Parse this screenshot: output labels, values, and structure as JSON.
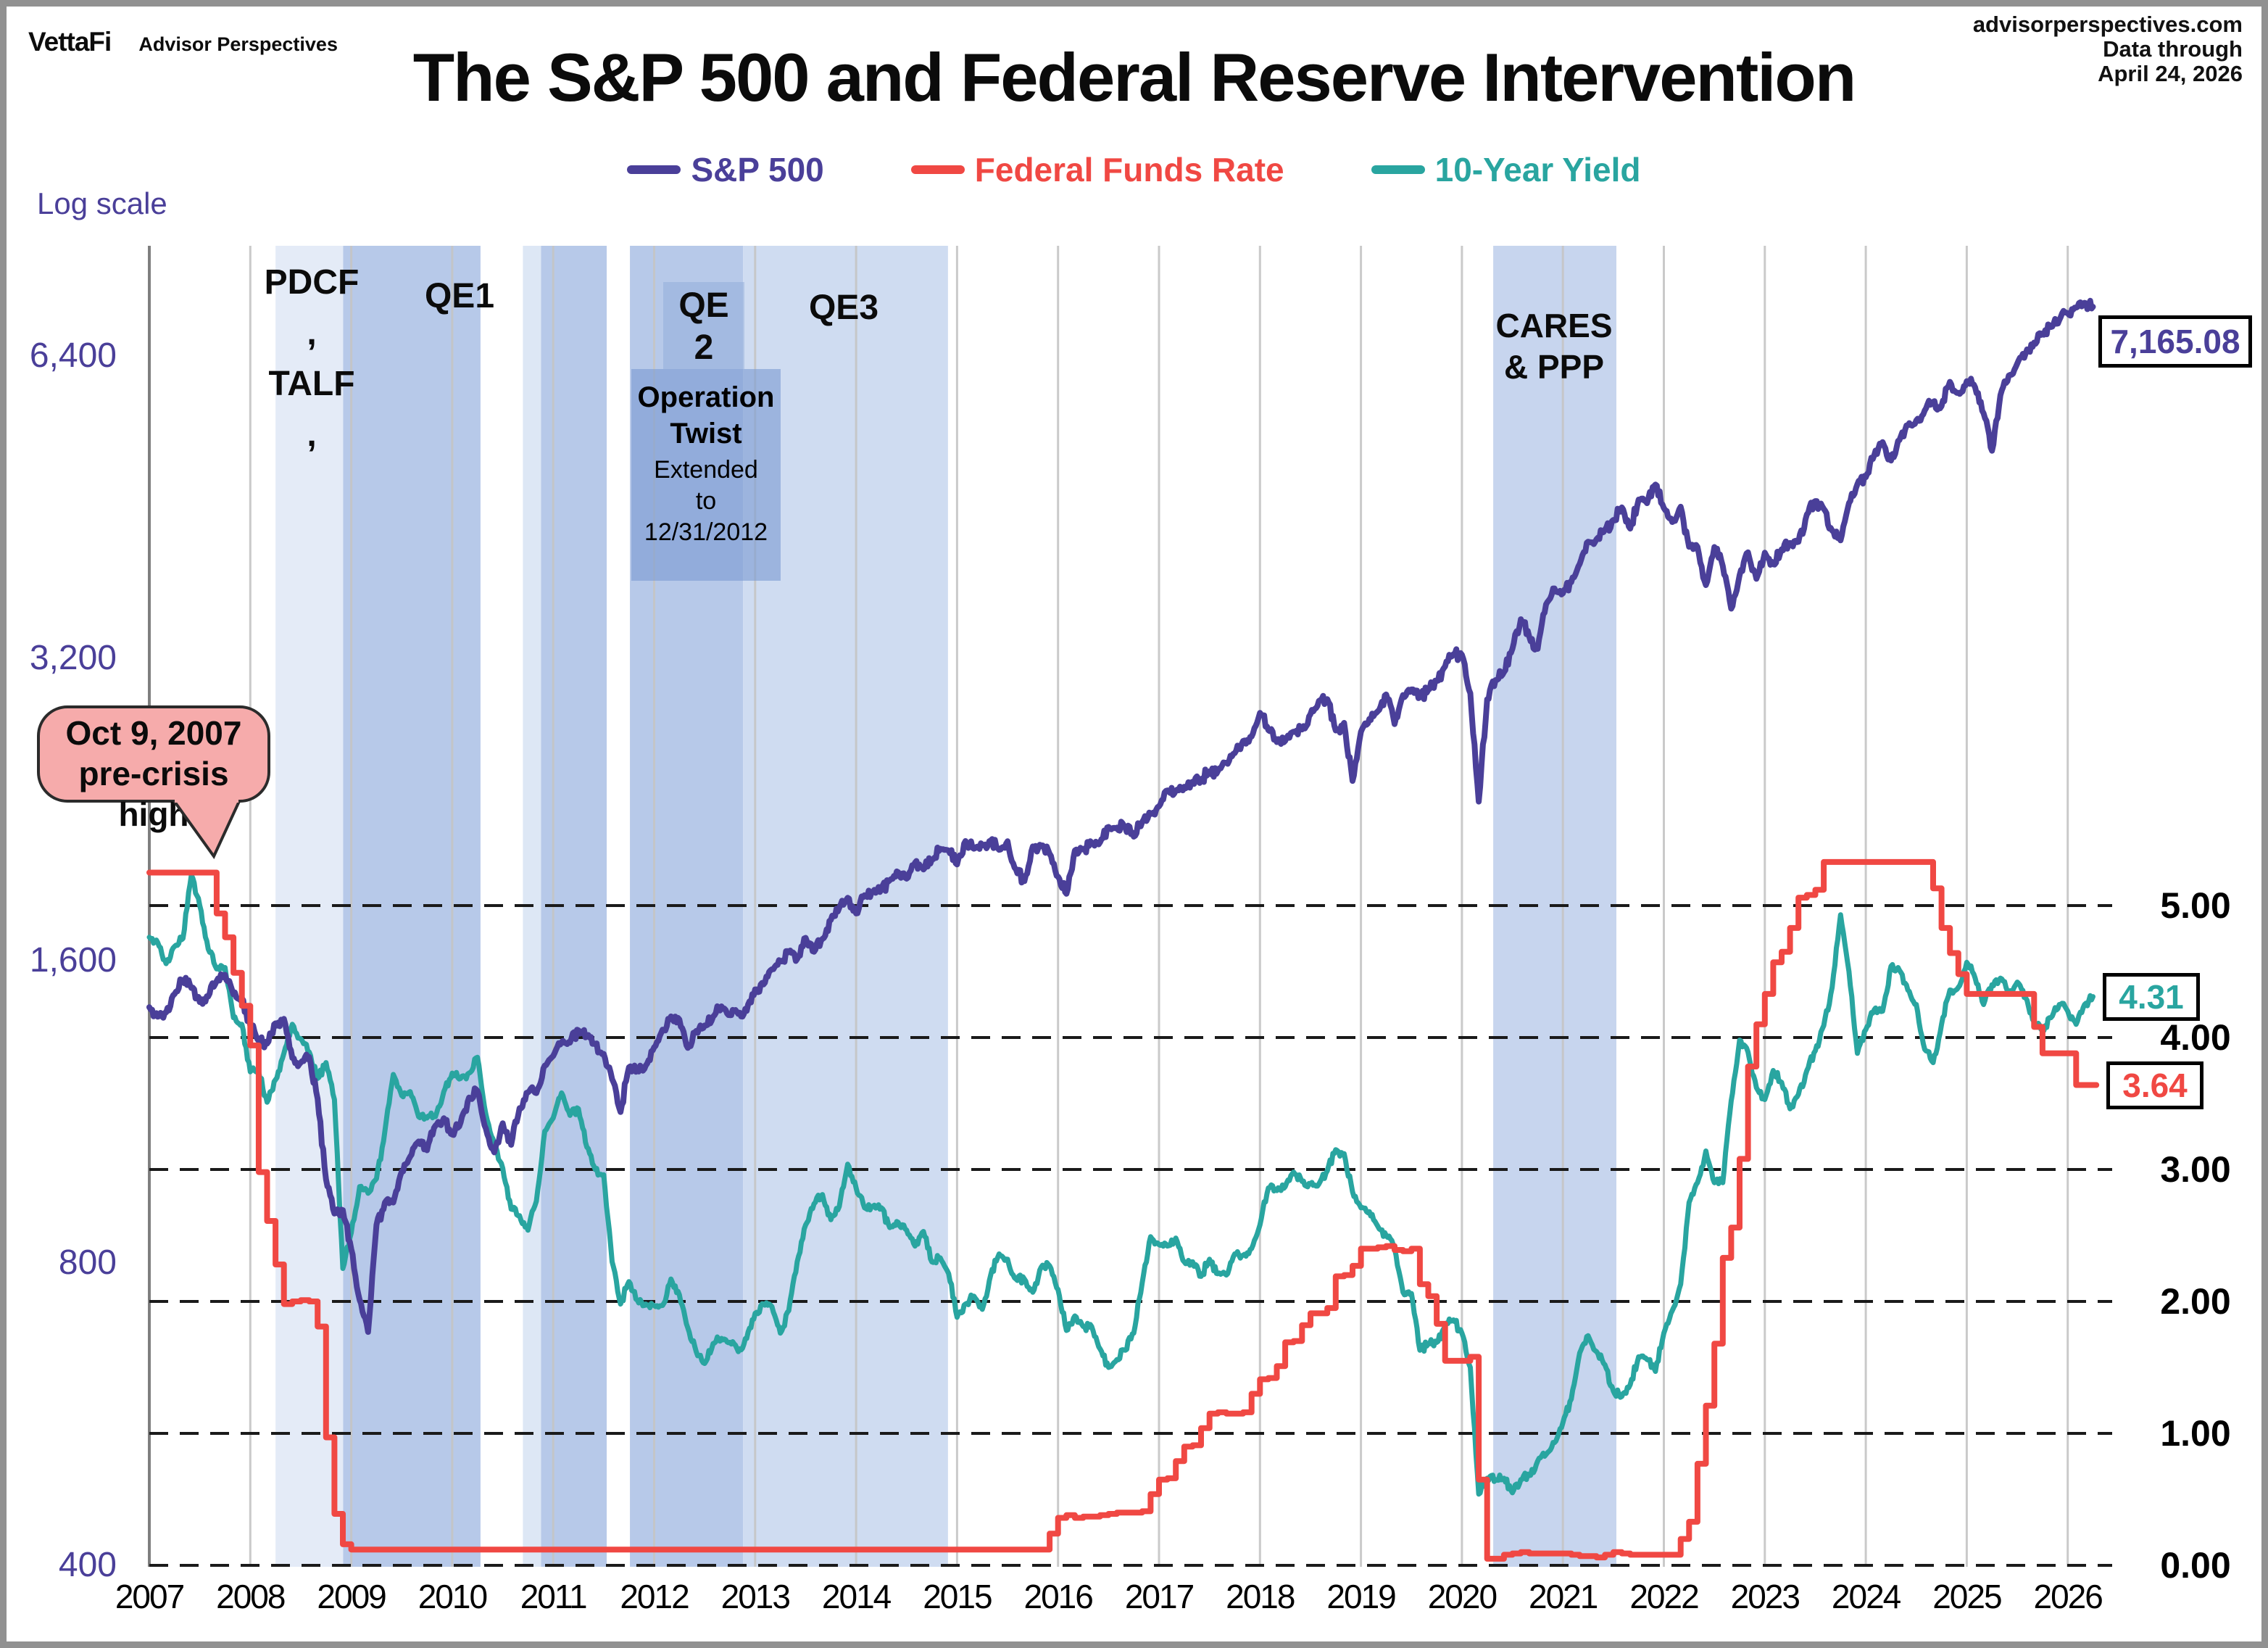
{
  "header": {
    "logo": "VettaFi",
    "logo_sub": "Advisor Perspectives",
    "source_note": "advisorperspectives.com\nData through\nApril 24, 2026"
  },
  "title": "The S&P 500 and Federal Reserve Intervention",
  "log_scale_label": "Log scale",
  "legend": [
    {
      "label": "S&P 500",
      "color": "#4a3f99"
    },
    {
      "label": "Federal Funds Rate",
      "color": "#f04843"
    },
    {
      "label": "10-Year Yield",
      "color": "#29a5a0"
    }
  ],
  "annotations": {
    "pdcf_talf": "PDCF\n,\nTALF\n,",
    "qe1": "QE1",
    "qe2": "QE\n2",
    "twist_title": "Operation\nTwist",
    "twist_sub": "Extended\nto\n12/31/2012",
    "qe3": "QE3",
    "cares": "CARES\n& PPP",
    "callout": "Oct 9, 2007\npre-crisis high"
  },
  "value_boxes": {
    "sp_last": "7,165.08",
    "tenyr_last": "4.31",
    "ffr_last": "3.64"
  },
  "colors": {
    "sp": "#4a3f99",
    "ffr": "#f04843",
    "tenyr": "#29a5a0",
    "grid_year": "#c4c4c4",
    "axis_line": "#7f7f7f",
    "dash_line": "#1a1a1a"
  },
  "chart_data": {
    "type": "line",
    "title": "The S&P 500 and Federal Reserve Intervention",
    "x_axis": {
      "start_year": 2007,
      "end": 2026.33,
      "tick_years": [
        "2007",
        "2008",
        "2009",
        "2010",
        "2011",
        "2012",
        "2013",
        "2014",
        "2015",
        "2016",
        "2017",
        "2018",
        "2019",
        "2020",
        "2021",
        "2022",
        "2023",
        "2024",
        "2025",
        "2026"
      ]
    },
    "left_axis": {
      "scale": "log2",
      "tick_labels": [
        "6,400",
        "3,200",
        "1,600",
        "800",
        "400"
      ],
      "tick_values": [
        6400,
        3200,
        1600,
        800,
        400
      ]
    },
    "right_axis": {
      "tick_labels": [
        "5.00",
        "4.00",
        "3.00",
        "2.00",
        "1.00",
        "0.00"
      ],
      "tick_values": [
        5,
        4,
        3,
        2,
        1,
        0
      ]
    },
    "bands": [
      {
        "name": "pdcf-talf",
        "x0": 2008.25,
        "x1": 2008.92,
        "color": "#e4ebf7"
      },
      {
        "name": "qe1",
        "x0": 2008.92,
        "x1": 2010.28,
        "color": "#b7c9e9"
      },
      {
        "name": "qe2-announce",
        "x0": 2010.7,
        "x1": 2010.88,
        "color": "#dde7f5"
      },
      {
        "name": "qe2",
        "x0": 2010.88,
        "x1": 2011.53,
        "color": "#b7c9e9"
      },
      {
        "name": "operation-twist",
        "x0": 2011.76,
        "x1": 2012.88,
        "color": "#b7c9e9"
      },
      {
        "name": "qe3",
        "x0": 2012.88,
        "x1": 2014.91,
        "color": "#cfdcf1"
      },
      {
        "name": "cares-ppp",
        "x0": 2020.31,
        "x1": 2021.53,
        "color": "#c7d5ee"
      }
    ],
    "series": [
      {
        "name": "S&P 500",
        "axis": "log-left",
        "style": "noisy-line",
        "start": 2007,
        "points_per_year": 12,
        "last_label": "7,165.08",
        "values": [
          1438,
          1407,
          1421,
          1482,
          1531,
          1503,
          1455,
          1474,
          1527,
          1549,
          1481,
          1468,
          1379,
          1331,
          1323,
          1386,
          1400,
          1280,
          1267,
          1283,
          1166,
          969,
          896,
          903,
          826,
          735,
          683,
          873,
          919,
          919,
          987,
          1021,
          1057,
          1036,
          1096,
          1115,
          1074,
          1104,
          1169,
          1187,
          1089,
          1031,
          1102,
          1049,
          1141,
          1183,
          1181,
          1258,
          1286,
          1327,
          1326,
          1364,
          1345,
          1321,
          1292,
          1219,
          1131,
          1253,
          1247,
          1258,
          1312,
          1366,
          1408,
          1398,
          1310,
          1362,
          1379,
          1407,
          1441,
          1412,
          1416,
          1426,
          1498,
          1515,
          1569,
          1598,
          1631,
          1606,
          1686,
          1633,
          1682,
          1757,
          1806,
          1848,
          1783,
          1859,
          1872,
          1884,
          1924,
          1960,
          1931,
          2003,
          1972,
          2018,
          2068,
          2059,
          1995,
          2105,
          2068,
          2086,
          2107,
          2063,
          2104,
          1972,
          1920,
          2079,
          2080,
          2044,
          1940,
          1865,
          2060,
          2065,
          2097,
          2099,
          2174,
          2171,
          2168,
          2126,
          2199,
          2239,
          2279,
          2364,
          2363,
          2384,
          2412,
          2423,
          2470,
          2472,
          2519,
          2575,
          2648,
          2674,
          2824,
          2714,
          2641,
          2648,
          2705,
          2718,
          2816,
          2902,
          2914,
          2712,
          2760,
          2416,
          2704,
          2785,
          2834,
          2946,
          2752,
          2942,
          2980,
          2926,
          2977,
          3038,
          3141,
          3231,
          3226,
          2954,
          2304,
          2912,
          3044,
          3100,
          3271,
          3500,
          3363,
          3270,
          3622,
          3756,
          3714,
          3811,
          3973,
          4181,
          4204,
          4298,
          4395,
          4523,
          4308,
          4605,
          4567,
          4766,
          4516,
          4374,
          4530,
          4132,
          4132,
          3785,
          4130,
          3955,
          3586,
          3872,
          4080,
          3840,
          4077,
          3970,
          4109,
          4169,
          4180,
          4450,
          4589,
          4508,
          4288,
          4194,
          4568,
          4770,
          4846,
          5096,
          5254,
          5036,
          5278,
          5460,
          5522,
          5648,
          5762,
          5705,
          6032,
          5882,
          6041,
          5955,
          5612,
          5150,
          5850,
          6120,
          6290,
          6440,
          6600,
          6740,
          6840,
          6950,
          7060,
          7150,
          7230,
          7165.08
        ]
      },
      {
        "name": "Federal Funds Rate",
        "axis": "rate-right",
        "style": "step",
        "start": 2007,
        "points_per_year": 12,
        "last_label": "3.64",
        "values": [
          5.25,
          5.25,
          5.25,
          5.25,
          5.25,
          5.25,
          5.25,
          5.25,
          4.94,
          4.76,
          4.49,
          4.24,
          3.94,
          2.98,
          2.61,
          2.28,
          1.98,
          2.0,
          2.01,
          2.0,
          1.81,
          0.97,
          0.39,
          0.16,
          0.12,
          0.12,
          0.12,
          0.12,
          0.12,
          0.12,
          0.12,
          0.12,
          0.12,
          0.12,
          0.12,
          0.12,
          0.12,
          0.12,
          0.12,
          0.12,
          0.12,
          0.12,
          0.12,
          0.12,
          0.12,
          0.12,
          0.12,
          0.12,
          0.12,
          0.12,
          0.12,
          0.12,
          0.12,
          0.12,
          0.12,
          0.12,
          0.12,
          0.12,
          0.12,
          0.12,
          0.12,
          0.12,
          0.12,
          0.12,
          0.12,
          0.12,
          0.12,
          0.12,
          0.12,
          0.12,
          0.12,
          0.12,
          0.12,
          0.12,
          0.12,
          0.12,
          0.12,
          0.12,
          0.12,
          0.12,
          0.12,
          0.12,
          0.12,
          0.12,
          0.12,
          0.12,
          0.12,
          0.12,
          0.12,
          0.12,
          0.12,
          0.12,
          0.12,
          0.12,
          0.12,
          0.12,
          0.12,
          0.12,
          0.12,
          0.12,
          0.12,
          0.12,
          0.12,
          0.12,
          0.12,
          0.12,
          0.12,
          0.24,
          0.36,
          0.38,
          0.36,
          0.37,
          0.37,
          0.38,
          0.39,
          0.4,
          0.4,
          0.4,
          0.41,
          0.54,
          0.65,
          0.66,
          0.79,
          0.9,
          0.91,
          1.04,
          1.15,
          1.16,
          1.15,
          1.15,
          1.16,
          1.3,
          1.41,
          1.42,
          1.51,
          1.69,
          1.7,
          1.82,
          1.91,
          1.91,
          1.95,
          2.19,
          2.2,
          2.27,
          2.4,
          2.4,
          2.41,
          2.42,
          2.39,
          2.38,
          2.4,
          2.13,
          2.04,
          1.83,
          1.55,
          1.55,
          1.55,
          1.58,
          0.65,
          0.05,
          0.05,
          0.08,
          0.09,
          0.1,
          0.09,
          0.09,
          0.09,
          0.09,
          0.09,
          0.08,
          0.07,
          0.07,
          0.06,
          0.08,
          0.1,
          0.09,
          0.08,
          0.08,
          0.08,
          0.08,
          0.08,
          0.08,
          0.2,
          0.33,
          0.77,
          1.21,
          1.68,
          2.33,
          2.56,
          3.08,
          3.78,
          4.1,
          4.33,
          4.57,
          4.65,
          4.83,
          5.06,
          5.08,
          5.12,
          5.33,
          5.33,
          5.33,
          5.33,
          5.33,
          5.33,
          5.33,
          5.33,
          5.33,
          5.33,
          5.33,
          5.33,
          5.33,
          5.13,
          4.83,
          4.64,
          4.48,
          4.33,
          4.33,
          4.33,
          4.33,
          4.33,
          4.33,
          4.33,
          4.33,
          4.08,
          3.88,
          3.88,
          3.88,
          3.88,
          3.64,
          3.64,
          3.64
        ]
      },
      {
        "name": "10-Year Yield",
        "axis": "rate-right",
        "style": "noisy-line",
        "start": 2007,
        "points_per_year": 12,
        "last_label": "4.31",
        "values": [
          4.76,
          4.72,
          4.56,
          4.69,
          4.75,
          5.23,
          5.0,
          4.67,
          4.52,
          4.53,
          4.15,
          4.1,
          3.74,
          3.74,
          3.51,
          3.68,
          3.88,
          4.1,
          3.99,
          3.89,
          3.69,
          3.81,
          3.53,
          2.25,
          2.52,
          2.87,
          2.82,
          2.93,
          3.29,
          3.72,
          3.56,
          3.59,
          3.4,
          3.39,
          3.4,
          3.59,
          3.73,
          3.69,
          3.73,
          3.85,
          3.42,
          3.2,
          3.01,
          2.7,
          2.65,
          2.54,
          2.76,
          3.29,
          3.39,
          3.58,
          3.41,
          3.46,
          3.17,
          3.0,
          2.96,
          2.3,
          1.98,
          2.15,
          2.01,
          1.98,
          1.97,
          1.97,
          2.17,
          2.05,
          1.8,
          1.62,
          1.53,
          1.68,
          1.72,
          1.69,
          1.62,
          1.72,
          1.91,
          1.98,
          1.96,
          1.76,
          1.93,
          2.3,
          2.58,
          2.74,
          2.81,
          2.62,
          2.72,
          3.04,
          2.86,
          2.71,
          2.72,
          2.71,
          2.56,
          2.6,
          2.54,
          2.42,
          2.53,
          2.3,
          2.33,
          2.21,
          1.88,
          1.98,
          2.04,
          1.94,
          2.2,
          2.36,
          2.32,
          2.17,
          2.17,
          2.07,
          2.26,
          2.27,
          2.09,
          1.78,
          1.89,
          1.81,
          1.81,
          1.64,
          1.5,
          1.56,
          1.63,
          1.76,
          2.14,
          2.49,
          2.43,
          2.42,
          2.48,
          2.3,
          2.3,
          2.19,
          2.32,
          2.21,
          2.2,
          2.36,
          2.35,
          2.4,
          2.58,
          2.86,
          2.84,
          2.87,
          2.98,
          2.91,
          2.89,
          2.89,
          2.99,
          3.15,
          3.12,
          2.83,
          2.71,
          2.68,
          2.57,
          2.5,
          2.4,
          2.07,
          2.06,
          1.63,
          1.68,
          1.69,
          1.81,
          1.86,
          1.76,
          1.5,
          0.54,
          0.66,
          0.65,
          0.66,
          0.55,
          0.65,
          0.68,
          0.79,
          0.84,
          0.93,
          1.08,
          1.26,
          1.61,
          1.74,
          1.62,
          1.52,
          1.32,
          1.28,
          1.37,
          1.58,
          1.56,
          1.47,
          1.76,
          1.93,
          2.13,
          2.75,
          2.9,
          3.14,
          2.9,
          2.9,
          3.52,
          3.98,
          3.89,
          3.62,
          3.53,
          3.75,
          3.66,
          3.46,
          3.57,
          3.75,
          3.9,
          4.09,
          4.38,
          4.93,
          4.5,
          3.88,
          4.06,
          4.21,
          4.2,
          4.54,
          4.51,
          4.36,
          4.25,
          3.91,
          3.81,
          4.1,
          4.36,
          4.38,
          4.57,
          4.45,
          4.25,
          4.4,
          4.45,
          4.35,
          4.42,
          4.3,
          4.12,
          4.05,
          4.15,
          4.25,
          4.2,
          4.1,
          4.25,
          4.31
        ]
      }
    ],
    "grid": {
      "vertical_years": true,
      "horizontal_dashed_rate_lines": [
        0,
        1,
        2,
        3,
        4,
        5
      ]
    },
    "legend_position": "top-center"
  }
}
